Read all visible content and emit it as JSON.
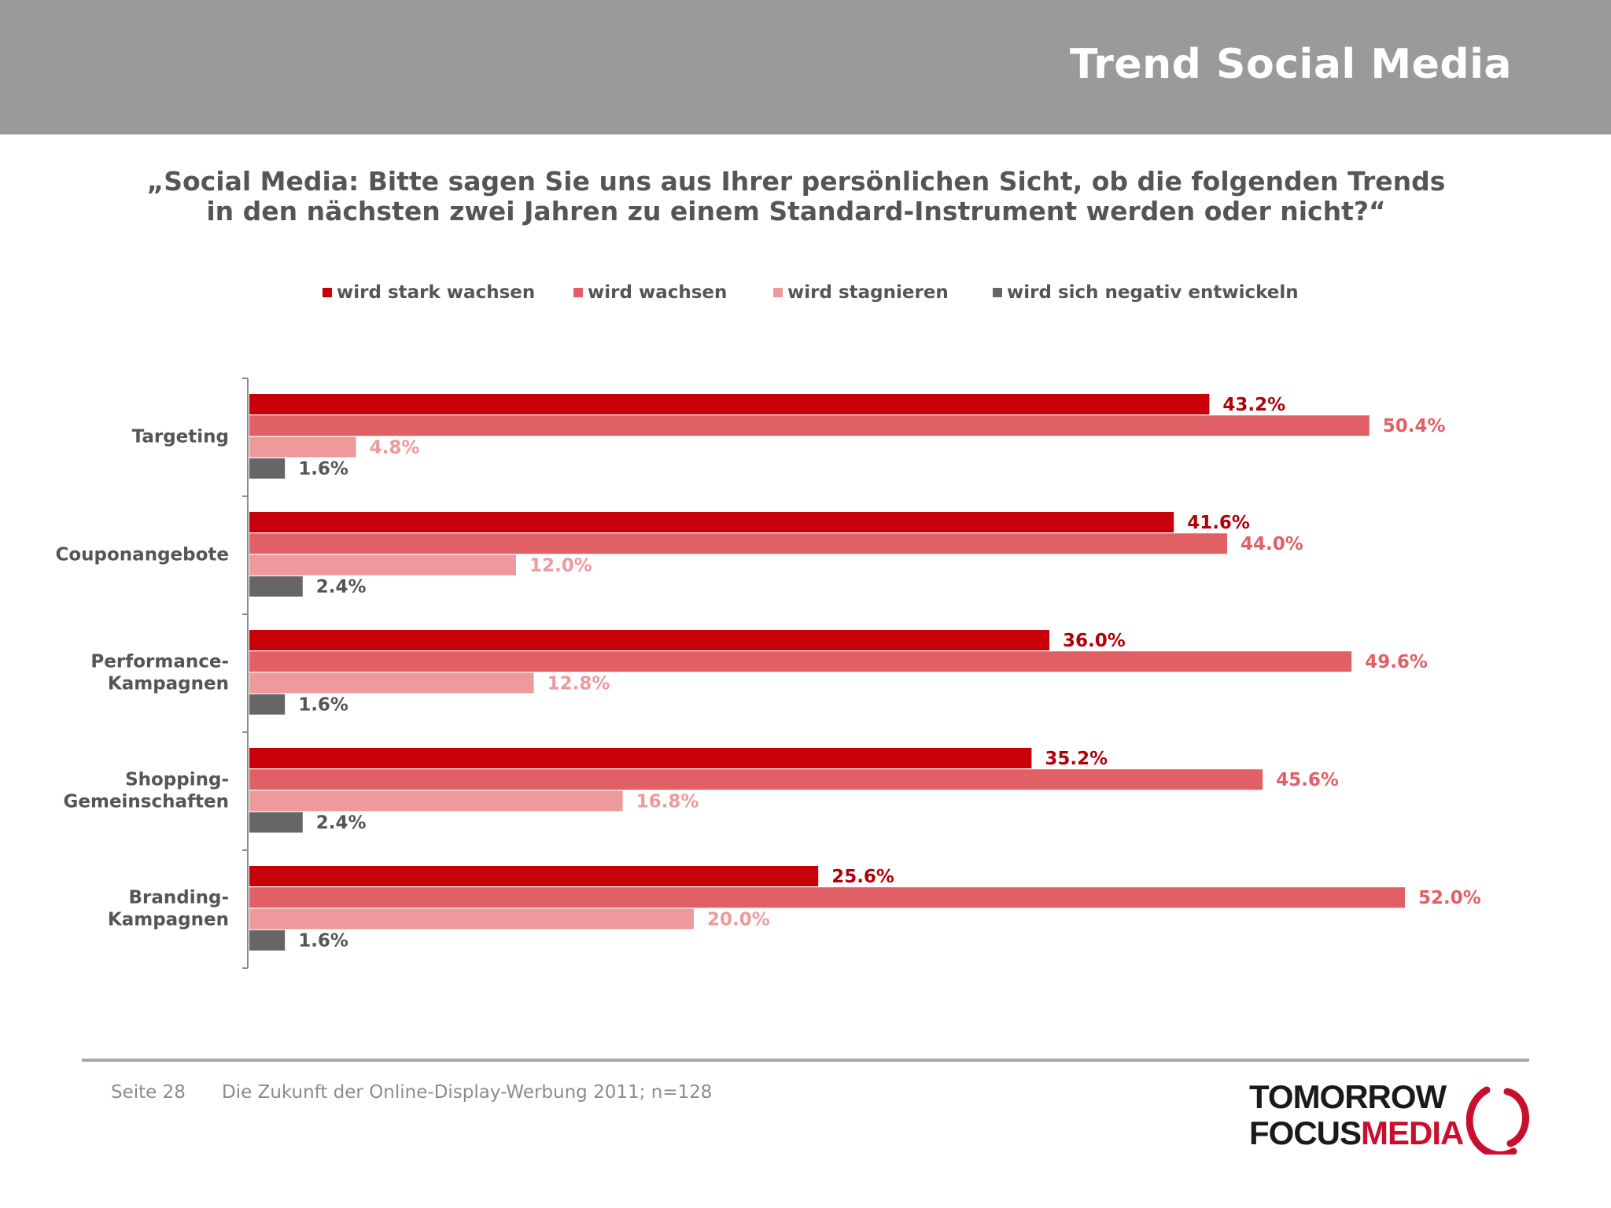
{
  "header": {
    "title": "Trend Social Media"
  },
  "question": {
    "line1": "„Social Media: Bitte sagen Sie uns aus Ihrer persönlichen Sicht, ob die folgenden Trends",
    "line2": "in den nächsten zwei Jahren zu einem Standard-Instrument werden oder nicht?“"
  },
  "chart_data": {
    "type": "bar",
    "orientation": "horizontal",
    "categories": [
      "Targeting",
      "Couponangebote",
      "Performance-\nKampagnen",
      "Shopping-\nGemeinschaften",
      "Branding-\nKampagnen"
    ],
    "series": [
      {
        "name": "wird stark wachsen",
        "color": "#c8000a",
        "label_color": "#b0000a",
        "values": [
          43.2,
          41.6,
          36.0,
          35.2,
          25.6
        ]
      },
      {
        "name": "wird wachsen",
        "color": "#e06066",
        "label_color": "#e06066",
        "values": [
          50.4,
          44.0,
          49.6,
          45.6,
          52.0
        ]
      },
      {
        "name": "wird stagnieren",
        "color": "#ee9a9c",
        "label_color": "#ee9a9c",
        "values": [
          4.8,
          12.0,
          12.8,
          16.8,
          20.0
        ]
      },
      {
        "name": "wird sich negativ entwickeln",
        "color": "#666666",
        "label_color": "#555555",
        "values": [
          1.6,
          2.4,
          1.6,
          2.4,
          1.6
        ]
      }
    ],
    "value_suffix": "%",
    "value_decimals": 1,
    "xlim": [
      0,
      60
    ],
    "grid": false,
    "legend_position": "top"
  },
  "footer": {
    "page": "Seite 28",
    "source": "Die Zukunft der Online-Display-Werbung 2011; n=128"
  },
  "logo": {
    "line1": "TOMORROW",
    "line2a": "FOCUS",
    "line2b": "MEDIA"
  }
}
